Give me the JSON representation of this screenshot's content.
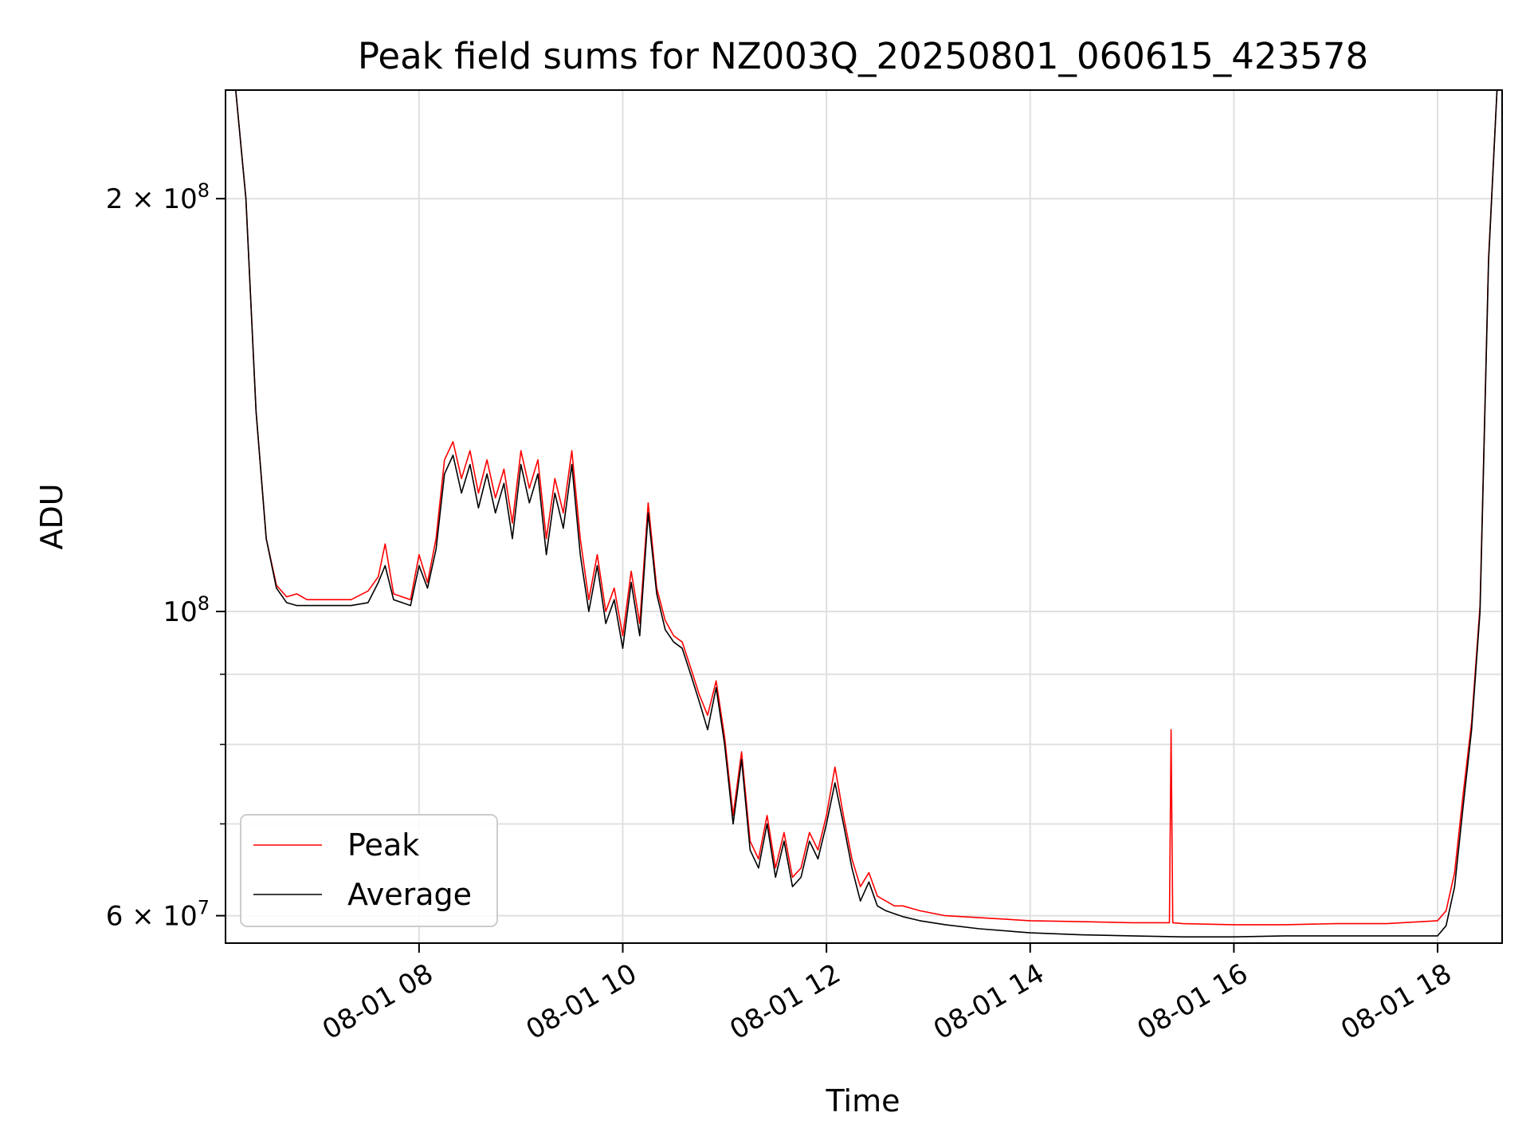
{
  "chart_data": {
    "type": "line",
    "title": "Peak field sums for NZ003Q_20250801_060615_423578",
    "xlabel": "Time",
    "ylabel": "ADU",
    "yscale": "log",
    "ylim": [
      57300000,
      240000000
    ],
    "xlim": [
      "2025-08-01 06:06",
      "2025-08-01 18:38"
    ],
    "x_ticks": [
      {
        "label": "08-01 08",
        "at": "2025-08-01 08:00"
      },
      {
        "label": "08-01 10",
        "at": "2025-08-01 10:00"
      },
      {
        "label": "08-01 12",
        "at": "2025-08-01 12:00"
      },
      {
        "label": "08-01 14",
        "at": "2025-08-01 14:00"
      },
      {
        "label": "08-01 16",
        "at": "2025-08-01 16:00"
      },
      {
        "label": "08-01 18",
        "at": "2025-08-01 18:00"
      }
    ],
    "y_ticks": [
      {
        "value": 60000000,
        "base": "6 × 10",
        "exp": "7"
      },
      {
        "value": 100000000,
        "base": "10",
        "exp": "8"
      },
      {
        "value": 200000000,
        "base": "2 × 10",
        "exp": "8"
      }
    ],
    "y_minor_ticks": [
      70000000,
      80000000,
      90000000
    ],
    "grid": true,
    "legend_position": "lower-left",
    "series": [
      {
        "name": "Average",
        "color": "#000000",
        "x": [
          "2025-08-01 06:12",
          "2025-08-01 06:18",
          "2025-08-01 06:24",
          "2025-08-01 06:30",
          "2025-08-01 06:36",
          "2025-08-01 06:42",
          "2025-08-01 06:48",
          "2025-08-01 06:54",
          "2025-08-01 07:00",
          "2025-08-01 07:10",
          "2025-08-01 07:20",
          "2025-08-01 07:30",
          "2025-08-01 07:36",
          "2025-08-01 07:40",
          "2025-08-01 07:45",
          "2025-08-01 07:50",
          "2025-08-01 07:55",
          "2025-08-01 08:00",
          "2025-08-01 08:05",
          "2025-08-01 08:10",
          "2025-08-01 08:15",
          "2025-08-01 08:20",
          "2025-08-01 08:25",
          "2025-08-01 08:30",
          "2025-08-01 08:35",
          "2025-08-01 08:40",
          "2025-08-01 08:45",
          "2025-08-01 08:50",
          "2025-08-01 08:55",
          "2025-08-01 09:00",
          "2025-08-01 09:05",
          "2025-08-01 09:10",
          "2025-08-01 09:15",
          "2025-08-01 09:20",
          "2025-08-01 09:25",
          "2025-08-01 09:30",
          "2025-08-01 09:35",
          "2025-08-01 09:40",
          "2025-08-01 09:45",
          "2025-08-01 09:50",
          "2025-08-01 09:55",
          "2025-08-01 10:00",
          "2025-08-01 10:05",
          "2025-08-01 10:10",
          "2025-08-01 10:15",
          "2025-08-01 10:20",
          "2025-08-01 10:25",
          "2025-08-01 10:30",
          "2025-08-01 10:35",
          "2025-08-01 10:40",
          "2025-08-01 10:45",
          "2025-08-01 10:50",
          "2025-08-01 10:55",
          "2025-08-01 11:00",
          "2025-08-01 11:05",
          "2025-08-01 11:10",
          "2025-08-01 11:15",
          "2025-08-01 11:20",
          "2025-08-01 11:25",
          "2025-08-01 11:30",
          "2025-08-01 11:35",
          "2025-08-01 11:40",
          "2025-08-01 11:45",
          "2025-08-01 11:50",
          "2025-08-01 11:55",
          "2025-08-01 12:00",
          "2025-08-01 12:05",
          "2025-08-01 12:10",
          "2025-08-01 12:15",
          "2025-08-01 12:20",
          "2025-08-01 12:25",
          "2025-08-01 12:30",
          "2025-08-01 12:35",
          "2025-08-01 12:40",
          "2025-08-01 12:45",
          "2025-08-01 12:55",
          "2025-08-01 13:10",
          "2025-08-01 13:30",
          "2025-08-01 14:00",
          "2025-08-01 14:30",
          "2025-08-01 15:00",
          "2025-08-01 15:30",
          "2025-08-01 16:00",
          "2025-08-01 16:30",
          "2025-08-01 17:00",
          "2025-08-01 17:30",
          "2025-08-01 18:00",
          "2025-08-01 18:05",
          "2025-08-01 18:10",
          "2025-08-01 18:15",
          "2025-08-01 18:20",
          "2025-08-01 18:25",
          "2025-08-01 18:30",
          "2025-08-01 18:35",
          "2025-08-01 18:38"
        ],
        "values": [
          240000000,
          200000000,
          140000000,
          113000000,
          104000000,
          101500000,
          101000000,
          101000000,
          101000000,
          101000000,
          101000000,
          101500000,
          105000000,
          108000000,
          102000000,
          101500000,
          101000000,
          108000000,
          104000000,
          111000000,
          126000000,
          130000000,
          122000000,
          128000000,
          119000000,
          126000000,
          118000000,
          124000000,
          113000000,
          128000000,
          120000000,
          126000000,
          110000000,
          122000000,
          115000000,
          128000000,
          110000000,
          100000000,
          108000000,
          98000000,
          102000000,
          94000000,
          105000000,
          96000000,
          118000000,
          103000000,
          97000000,
          95000000,
          94000000,
          90000000,
          86000000,
          82000000,
          88000000,
          80000000,
          70000000,
          78000000,
          67000000,
          65000000,
          70000000,
          64000000,
          68000000,
          63000000,
          64000000,
          68000000,
          66000000,
          70000000,
          75000000,
          70000000,
          65000000,
          61500000,
          63500000,
          61000000,
          60500000,
          60200000,
          59900000,
          59500000,
          59100000,
          58700000,
          58300000,
          58100000,
          58000000,
          57900000,
          57900000,
          58000000,
          58000000,
          58000000,
          58000000,
          59000000,
          63000000,
          72000000,
          82000000,
          100000000,
          180000000,
          240000000,
          240000000
        ]
      },
      {
        "name": "Peak",
        "color": "#ff0000",
        "x": [
          "2025-08-01 06:12",
          "2025-08-01 06:18",
          "2025-08-01 06:24",
          "2025-08-01 06:30",
          "2025-08-01 06:36",
          "2025-08-01 06:42",
          "2025-08-01 06:48",
          "2025-08-01 06:54",
          "2025-08-01 07:00",
          "2025-08-01 07:10",
          "2025-08-01 07:20",
          "2025-08-01 07:30",
          "2025-08-01 07:36",
          "2025-08-01 07:40",
          "2025-08-01 07:45",
          "2025-08-01 07:50",
          "2025-08-01 07:55",
          "2025-08-01 08:00",
          "2025-08-01 08:05",
          "2025-08-01 08:10",
          "2025-08-01 08:15",
          "2025-08-01 08:20",
          "2025-08-01 08:25",
          "2025-08-01 08:30",
          "2025-08-01 08:35",
          "2025-08-01 08:40",
          "2025-08-01 08:45",
          "2025-08-01 08:50",
          "2025-08-01 08:55",
          "2025-08-01 09:00",
          "2025-08-01 09:05",
          "2025-08-01 09:10",
          "2025-08-01 09:15",
          "2025-08-01 09:20",
          "2025-08-01 09:25",
          "2025-08-01 09:30",
          "2025-08-01 09:35",
          "2025-08-01 09:40",
          "2025-08-01 09:45",
          "2025-08-01 09:50",
          "2025-08-01 09:55",
          "2025-08-01 10:00",
          "2025-08-01 10:05",
          "2025-08-01 10:10",
          "2025-08-01 10:15",
          "2025-08-01 10:20",
          "2025-08-01 10:25",
          "2025-08-01 10:30",
          "2025-08-01 10:35",
          "2025-08-01 10:40",
          "2025-08-01 10:45",
          "2025-08-01 10:50",
          "2025-08-01 10:55",
          "2025-08-01 11:00",
          "2025-08-01 11:05",
          "2025-08-01 11:10",
          "2025-08-01 11:15",
          "2025-08-01 11:20",
          "2025-08-01 11:25",
          "2025-08-01 11:30",
          "2025-08-01 11:35",
          "2025-08-01 11:40",
          "2025-08-01 11:45",
          "2025-08-01 11:50",
          "2025-08-01 11:55",
          "2025-08-01 12:00",
          "2025-08-01 12:05",
          "2025-08-01 12:10",
          "2025-08-01 12:15",
          "2025-08-01 12:20",
          "2025-08-01 12:25",
          "2025-08-01 12:30",
          "2025-08-01 12:35",
          "2025-08-01 12:40",
          "2025-08-01 12:45",
          "2025-08-01 12:55",
          "2025-08-01 13:10",
          "2025-08-01 13:30",
          "2025-08-01 14:00",
          "2025-08-01 14:30",
          "2025-08-01 15:00",
          "2025-08-01 15:22",
          "2025-08-01 15:23",
          "2025-08-01 15:24",
          "2025-08-01 15:30",
          "2025-08-01 16:00",
          "2025-08-01 16:30",
          "2025-08-01 17:00",
          "2025-08-01 17:30",
          "2025-08-01 18:00",
          "2025-08-01 18:05",
          "2025-08-01 18:10",
          "2025-08-01 18:15",
          "2025-08-01 18:20",
          "2025-08-01 18:25",
          "2025-08-01 18:30",
          "2025-08-01 18:35",
          "2025-08-01 18:38"
        ],
        "values": [
          240000000,
          200000000,
          140000000,
          113000000,
          104500000,
          102500000,
          103000000,
          102000000,
          102000000,
          102000000,
          102000000,
          103500000,
          106000000,
          112000000,
          103000000,
          102500000,
          102000000,
          110000000,
          105000000,
          113000000,
          129000000,
          133000000,
          125000000,
          131000000,
          122000000,
          129000000,
          121000000,
          127000000,
          116000000,
          131000000,
          123000000,
          129000000,
          113000000,
          125000000,
          118000000,
          131000000,
          113000000,
          102000000,
          110000000,
          100000000,
          104000000,
          96000000,
          107000000,
          98000000,
          120000000,
          104000000,
          98500000,
          96000000,
          95000000,
          91000000,
          87000000,
          84000000,
          89000000,
          81000000,
          71000000,
          79000000,
          68000000,
          66000000,
          71000000,
          65000000,
          69000000,
          64000000,
          65000000,
          69000000,
          67000000,
          71000000,
          77000000,
          71000000,
          66000000,
          63000000,
          64500000,
          62000000,
          61500000,
          61000000,
          61000000,
          60500000,
          60000000,
          59800000,
          59500000,
          59400000,
          59300000,
          59300000,
          82000000,
          59300000,
          59200000,
          59100000,
          59100000,
          59200000,
          59200000,
          59500000,
          60500000,
          64500000,
          73500000,
          83000000,
          101000000,
          181000000,
          240000000,
          240000000
        ]
      }
    ]
  }
}
